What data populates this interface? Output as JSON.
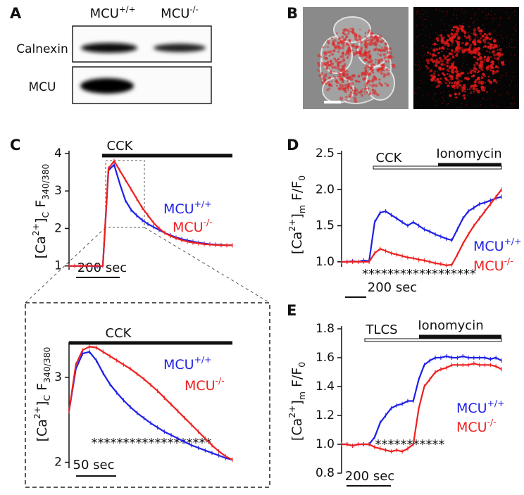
{
  "panel_labels": [
    "A",
    "B",
    "C",
    "D",
    "E"
  ],
  "blot": {
    "columns": [
      {
        "text": "MCU",
        "sup": "+/+"
      },
      {
        "text": "MCU",
        "sup": "-/-"
      }
    ],
    "rows": [
      "Calnexin",
      "MCU"
    ]
  },
  "chart_data": [
    {
      "type": "line",
      "ylabel_parts": [
        {
          "text": "[Ca",
          "pos": "base"
        },
        {
          "text": "2+",
          "pos": "sup"
        },
        {
          "text": "]",
          "pos": "base"
        },
        {
          "text": "C",
          "pos": "sub"
        },
        {
          "text": " F",
          "pos": "base"
        },
        {
          "text": "340/380",
          "pos": "sub"
        }
      ],
      "ylim": [
        0.9,
        4
      ],
      "yticks": [
        1,
        2,
        3,
        4
      ],
      "annotation_bars": [
        {
          "label": "CCK",
          "style": "solid"
        }
      ],
      "scale_bar": "200 sec",
      "series": [
        {
          "name": "MCU",
          "name_sup": "+/+",
          "color": "#1f1fe6",
          "values": [
            1,
            1,
            1,
            1,
            1,
            0.98,
            1,
            3.55,
            3.7,
            3.2,
            2.75,
            2.5,
            2.35,
            2.22,
            2.12,
            2.04,
            1.96,
            1.88,
            1.82,
            1.76,
            1.72,
            1.68,
            1.65,
            1.62,
            1.6,
            1.58,
            1.57,
            1.56,
            1.55,
            1.55
          ]
        },
        {
          "name": "MCU",
          "name_sup": "-/-",
          "color": "#ee2020",
          "values": [
            1,
            1,
            1,
            1,
            1,
            1,
            1,
            3.6,
            3.8,
            3.55,
            3.3,
            3.05,
            2.8,
            2.55,
            2.35,
            2.15,
            2.0,
            1.88,
            1.8,
            1.74,
            1.69,
            1.65,
            1.62,
            1.6,
            1.58,
            1.57,
            1.56,
            1.55,
            1.55,
            1.55
          ]
        }
      ]
    },
    {
      "type": "line",
      "ylabel_parts": [
        {
          "text": "[Ca",
          "pos": "base"
        },
        {
          "text": "2+",
          "pos": "sup"
        },
        {
          "text": "]",
          "pos": "base"
        },
        {
          "text": "C",
          "pos": "sub"
        },
        {
          "text": " F",
          "pos": "base"
        },
        {
          "text": "340/380",
          "pos": "sub"
        }
      ],
      "ylim": [
        1.93,
        3.38
      ],
      "yticks": [
        2,
        3
      ],
      "annotation_bars": [
        {
          "label": "CCK",
          "style": "solid"
        }
      ],
      "scale_bar": "50 sec",
      "stars": "*******************",
      "series": [
        {
          "name": "MCU",
          "name_sup": "+/+",
          "color": "#1f1fe6",
          "values": [
            2.6,
            3.1,
            3.28,
            3.3,
            3.2,
            3.05,
            2.92,
            2.82,
            2.73,
            2.65,
            2.58,
            2.52,
            2.46,
            2.41,
            2.36,
            2.32,
            2.28,
            2.24,
            2.2,
            2.17,
            2.14,
            2.11,
            2.08,
            2.05,
            2.03
          ]
        },
        {
          "name": "MCU",
          "name_sup": "-/-",
          "color": "#ee2020",
          "values": [
            2.6,
            3.15,
            3.32,
            3.36,
            3.35,
            3.3,
            3.25,
            3.2,
            3.15,
            3.1,
            3.04,
            2.98,
            2.91,
            2.84,
            2.76,
            2.68,
            2.6,
            2.52,
            2.44,
            2.36,
            2.28,
            2.2,
            2.13,
            2.07,
            2.03
          ]
        }
      ]
    },
    {
      "type": "line",
      "ylabel_parts": [
        {
          "text": "[Ca",
          "pos": "base"
        },
        {
          "text": "2+",
          "pos": "sup"
        },
        {
          "text": "]",
          "pos": "base"
        },
        {
          "text": "m",
          "pos": "sub"
        },
        {
          "text": " F/F",
          "pos": "base"
        },
        {
          "text": "0",
          "pos": "sub"
        }
      ],
      "ylim": [
        0.93,
        2.5
      ],
      "yticks": [
        {
          "value": 1,
          "label": "1.0"
        },
        1.5,
        {
          "value": 2,
          "label": "2.0"
        },
        2.5
      ],
      "annotation_bars": [
        {
          "label": "CCK",
          "style": "hollow"
        },
        {
          "label": "Ionomycin",
          "style": "solid"
        }
      ],
      "scale_bar": "200 sec",
      "stars": "******************",
      "series": [
        {
          "name": "MCU",
          "name_sup": "+/+",
          "color": "#1f1fe6",
          "values": [
            1,
            1,
            1.01,
            1,
            1.02,
            1.01,
            1.55,
            1.68,
            1.7,
            1.65,
            1.6,
            1.55,
            1.5,
            1.55,
            1.5,
            1.45,
            1.42,
            1.38,
            1.35,
            1.32,
            1.3,
            1.45,
            1.6,
            1.7,
            1.75,
            1.8,
            1.82,
            1.85,
            1.88,
            1.9
          ]
        },
        {
          "name": "MCU",
          "name_sup": "-/-",
          "color": "#ee2020",
          "values": [
            1,
            1,
            1,
            1,
            1,
            1,
            1.12,
            1.18,
            1.15,
            1.12,
            1.1,
            1.08,
            1.06,
            1.05,
            1.03,
            1.02,
            1.0,
            0.98,
            0.97,
            0.95,
            0.96,
            1.1,
            1.25,
            1.38,
            1.5,
            1.6,
            1.7,
            1.8,
            1.9,
            2.0
          ]
        }
      ]
    },
    {
      "type": "line",
      "ylabel_parts": [
        {
          "text": "[Ca",
          "pos": "base"
        },
        {
          "text": "2+",
          "pos": "sup"
        },
        {
          "text": "]",
          "pos": "base"
        },
        {
          "text": "m",
          "pos": "sub"
        },
        {
          "text": " F/F",
          "pos": "base"
        },
        {
          "text": "0",
          "pos": "sub"
        }
      ],
      "ylim": [
        0.8,
        1.8
      ],
      "yticks": [
        0.8,
        {
          "value": 1,
          "label": "1.0"
        },
        1.2,
        1.4,
        1.6,
        1.8
      ],
      "annotation_bars": [
        {
          "label": "TLCS",
          "style": "hollow"
        },
        {
          "label": "Ionomycin",
          "style": "solid"
        }
      ],
      "scale_bar": "200 sec",
      "stars": "***********",
      "series": [
        {
          "name": "MCU",
          "name_sup": "+/+",
          "color": "#1f1fe6",
          "values": [
            1,
            1,
            0.99,
            1,
            1,
            1,
            1.05,
            1.15,
            1.2,
            1.25,
            1.27,
            1.28,
            1.3,
            1.3,
            1.45,
            1.55,
            1.58,
            1.6,
            1.6,
            1.61,
            1.6,
            1.6,
            1.61,
            1.6,
            1.6,
            1.6,
            1.6,
            1.59,
            1.6,
            1.58
          ]
        },
        {
          "name": "MCU",
          "name_sup": "-/-",
          "color": "#ee2020",
          "values": [
            1,
            1,
            0.99,
            1,
            1,
            1,
            0.98,
            0.97,
            0.96,
            0.95,
            0.96,
            0.95,
            0.97,
            1.0,
            1.25,
            1.4,
            1.45,
            1.5,
            1.52,
            1.53,
            1.55,
            1.55,
            1.55,
            1.55,
            1.56,
            1.55,
            1.55,
            1.55,
            1.54,
            1.52
          ]
        }
      ]
    }
  ]
}
